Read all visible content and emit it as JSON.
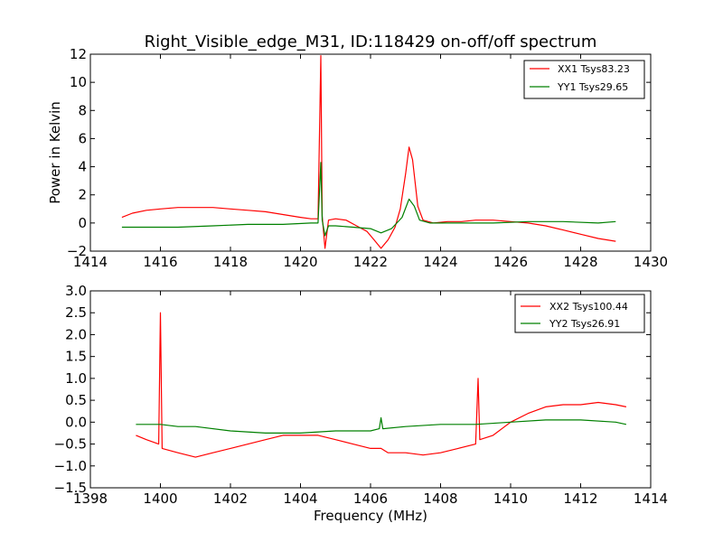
{
  "chart_data": [
    {
      "type": "line",
      "title": "Right_Visible_edge_M31, ID:118429 on-off/off spectrum",
      "xlabel": "",
      "ylabel": "Power in Kelvin",
      "xlim": [
        1414,
        1430
      ],
      "ylim": [
        -2,
        12
      ],
      "xticks": [
        1414,
        1416,
        1418,
        1420,
        1422,
        1424,
        1426,
        1428,
        1430
      ],
      "yticks": [
        -2,
        0,
        2,
        4,
        6,
        8,
        10,
        12
      ],
      "ytick_labels": [
        "−2",
        "0",
        "2",
        "4",
        "6",
        "8",
        "10",
        "12"
      ],
      "legend": "top-right",
      "series": [
        {
          "name": "XX1 Tsys83.23",
          "color": "#ff0000",
          "points": [
            [
              1414.9,
              0.4
            ],
            [
              1415.2,
              0.7
            ],
            [
              1415.6,
              0.9
            ],
            [
              1416.0,
              1.0
            ],
            [
              1416.5,
              1.1
            ],
            [
              1417.0,
              1.1
            ],
            [
              1417.5,
              1.1
            ],
            [
              1418.0,
              1.0
            ],
            [
              1418.5,
              0.9
            ],
            [
              1419.0,
              0.8
            ],
            [
              1419.5,
              0.6
            ],
            [
              1420.0,
              0.4
            ],
            [
              1420.3,
              0.3
            ],
            [
              1420.5,
              0.3
            ],
            [
              1420.58,
              11.9
            ],
            [
              1420.62,
              0.5
            ],
            [
              1420.7,
              -1.8
            ],
            [
              1420.8,
              0.2
            ],
            [
              1421.0,
              0.3
            ],
            [
              1421.3,
              0.2
            ],
            [
              1421.6,
              -0.2
            ],
            [
              1421.9,
              -0.6
            ],
            [
              1422.1,
              -1.2
            ],
            [
              1422.3,
              -1.8
            ],
            [
              1422.5,
              -1.2
            ],
            [
              1422.7,
              -0.3
            ],
            [
              1422.85,
              1.0
            ],
            [
              1423.0,
              3.5
            ],
            [
              1423.1,
              5.4
            ],
            [
              1423.2,
              4.5
            ],
            [
              1423.35,
              1.2
            ],
            [
              1423.5,
              0.2
            ],
            [
              1423.8,
              0.0
            ],
            [
              1424.2,
              0.1
            ],
            [
              1424.6,
              0.1
            ],
            [
              1425.0,
              0.2
            ],
            [
              1425.5,
              0.2
            ],
            [
              1426.0,
              0.1
            ],
            [
              1426.5,
              0.0
            ],
            [
              1427.0,
              -0.2
            ],
            [
              1427.5,
              -0.5
            ],
            [
              1428.0,
              -0.8
            ],
            [
              1428.5,
              -1.1
            ],
            [
              1429.0,
              -1.3
            ]
          ]
        },
        {
          "name": "YY1 Tsys29.65",
          "color": "#008000",
          "points": [
            [
              1414.9,
              -0.3
            ],
            [
              1415.5,
              -0.3
            ],
            [
              1416.5,
              -0.3
            ],
            [
              1417.5,
              -0.2
            ],
            [
              1418.5,
              -0.1
            ],
            [
              1419.5,
              -0.1
            ],
            [
              1420.3,
              0.0
            ],
            [
              1420.5,
              0.0
            ],
            [
              1420.58,
              4.3
            ],
            [
              1420.62,
              0.2
            ],
            [
              1420.7,
              -0.9
            ],
            [
              1420.8,
              -0.2
            ],
            [
              1421.0,
              -0.2
            ],
            [
              1421.5,
              -0.3
            ],
            [
              1422.0,
              -0.4
            ],
            [
              1422.3,
              -0.7
            ],
            [
              1422.6,
              -0.4
            ],
            [
              1422.9,
              0.4
            ],
            [
              1423.1,
              1.7
            ],
            [
              1423.25,
              1.2
            ],
            [
              1423.4,
              0.2
            ],
            [
              1423.7,
              0.0
            ],
            [
              1424.5,
              0.0
            ],
            [
              1425.5,
              0.0
            ],
            [
              1426.5,
              0.1
            ],
            [
              1427.5,
              0.1
            ],
            [
              1428.5,
              0.0
            ],
            [
              1429.0,
              0.1
            ]
          ]
        }
      ]
    },
    {
      "type": "line",
      "title": "",
      "xlabel": "Frequency (MHz)",
      "ylabel": "",
      "xlim": [
        1398,
        1414
      ],
      "ylim": [
        -1.5,
        3.0
      ],
      "xticks": [
        1398,
        1400,
        1402,
        1404,
        1406,
        1408,
        1410,
        1412,
        1414
      ],
      "yticks": [
        -1.5,
        -1.0,
        -0.5,
        0.0,
        0.5,
        1.0,
        1.5,
        2.0,
        2.5,
        3.0
      ],
      "ytick_labels": [
        "−1.5",
        "−1.0",
        "−0.5",
        "0.0",
        "0.5",
        "1.0",
        "1.5",
        "2.0",
        "2.5",
        "3.0"
      ],
      "legend": "top-right",
      "series": [
        {
          "name": "XX2 Tsys100.44",
          "color": "#ff0000",
          "points": [
            [
              1399.3,
              -0.3
            ],
            [
              1399.6,
              -0.4
            ],
            [
              1399.95,
              -0.5
            ],
            [
              1400.0,
              2.5
            ],
            [
              1400.05,
              -0.6
            ],
            [
              1400.5,
              -0.7
            ],
            [
              1401.0,
              -0.8
            ],
            [
              1401.5,
              -0.7
            ],
            [
              1402.0,
              -0.6
            ],
            [
              1402.5,
              -0.5
            ],
            [
              1403.0,
              -0.4
            ],
            [
              1403.5,
              -0.3
            ],
            [
              1404.0,
              -0.3
            ],
            [
              1404.5,
              -0.3
            ],
            [
              1405.0,
              -0.4
            ],
            [
              1405.5,
              -0.5
            ],
            [
              1406.0,
              -0.6
            ],
            [
              1406.3,
              -0.6
            ],
            [
              1406.5,
              -0.7
            ],
            [
              1407.0,
              -0.7
            ],
            [
              1407.5,
              -0.75
            ],
            [
              1408.0,
              -0.7
            ],
            [
              1408.5,
              -0.6
            ],
            [
              1409.0,
              -0.5
            ],
            [
              1409.07,
              1.0
            ],
            [
              1409.12,
              -0.4
            ],
            [
              1409.5,
              -0.3
            ],
            [
              1410.0,
              0.0
            ],
            [
              1410.5,
              0.2
            ],
            [
              1411.0,
              0.35
            ],
            [
              1411.5,
              0.4
            ],
            [
              1412.0,
              0.4
            ],
            [
              1412.5,
              0.45
            ],
            [
              1413.0,
              0.4
            ],
            [
              1413.3,
              0.35
            ]
          ]
        },
        {
          "name": "YY2 Tsys26.91",
          "color": "#008000",
          "points": [
            [
              1399.3,
              -0.05
            ],
            [
              1400.0,
              -0.05
            ],
            [
              1400.5,
              -0.1
            ],
            [
              1401.0,
              -0.1
            ],
            [
              1402.0,
              -0.2
            ],
            [
              1403.0,
              -0.25
            ],
            [
              1404.0,
              -0.25
            ],
            [
              1405.0,
              -0.2
            ],
            [
              1406.0,
              -0.2
            ],
            [
              1406.25,
              -0.15
            ],
            [
              1406.3,
              0.1
            ],
            [
              1406.35,
              -0.15
            ],
            [
              1407.0,
              -0.1
            ],
            [
              1408.0,
              -0.05
            ],
            [
              1409.0,
              -0.05
            ],
            [
              1410.0,
              0.0
            ],
            [
              1411.0,
              0.05
            ],
            [
              1412.0,
              0.05
            ],
            [
              1413.0,
              0.0
            ],
            [
              1413.3,
              -0.05
            ]
          ]
        }
      ]
    }
  ]
}
